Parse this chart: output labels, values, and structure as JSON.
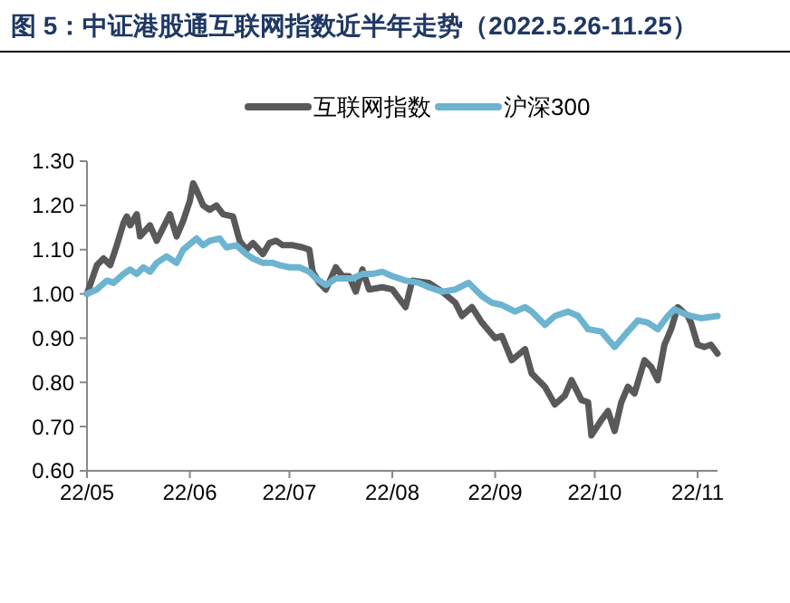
{
  "chart_data": {
    "type": "line",
    "title": "图 5：中证港股通互联网指数近半年走势（2022.5.26-11.25）",
    "legend": "top",
    "grid": false,
    "marker": "none",
    "line_style": "solid",
    "xlim": [
      "2022-05-26",
      "2022-12-02"
    ],
    "xticks": [
      {
        "value": "2022-05-26",
        "label": "22/05"
      },
      {
        "value": "2022-06-26",
        "label": "22/06"
      },
      {
        "value": "2022-07-26",
        "label": "22/07"
      },
      {
        "value": "2022-08-26",
        "label": "22/08"
      },
      {
        "value": "2022-09-26",
        "label": "22/09"
      },
      {
        "value": "2022-10-26",
        "label": "22/10"
      },
      {
        "value": "2022-11-26",
        "label": "22/11"
      }
    ],
    "ylim": [
      0.6,
      1.3
    ],
    "yticks": [
      {
        "value": 0.6,
        "label": "0.60"
      },
      {
        "value": 0.7,
        "label": "0.70"
      },
      {
        "value": 0.8,
        "label": "0.80"
      },
      {
        "value": 0.9,
        "label": "0.90"
      },
      {
        "value": 1.0,
        "label": "1.00"
      },
      {
        "value": 1.1,
        "label": "1.10"
      },
      {
        "value": 1.2,
        "label": "1.20"
      },
      {
        "value": 1.3,
        "label": "1.30"
      }
    ],
    "series": [
      {
        "name": "互联网指数",
        "color": "#595959",
        "x": [
          "2022-05-26",
          "2022-05-29",
          "2022-05-31",
          "2022-06-02",
          "2022-06-04",
          "2022-06-06",
          "2022-06-07",
          "2022-06-08",
          "2022-06-10",
          "2022-06-11",
          "2022-06-14",
          "2022-06-16",
          "2022-06-18",
          "2022-06-20",
          "2022-06-22",
          "2022-06-24",
          "2022-06-26",
          "2022-06-27",
          "2022-06-28",
          "2022-06-30",
          "2022-07-02",
          "2022-07-04",
          "2022-07-06",
          "2022-07-09",
          "2022-07-11",
          "2022-07-13",
          "2022-07-15",
          "2022-07-18",
          "2022-07-20",
          "2022-07-22",
          "2022-07-24",
          "2022-07-27",
          "2022-07-30",
          "2022-08-01",
          "2022-08-02",
          "2022-08-04",
          "2022-08-06",
          "2022-08-09",
          "2022-08-11",
          "2022-08-13",
          "2022-08-15",
          "2022-08-17",
          "2022-08-19",
          "2022-08-23",
          "2022-08-26",
          "2022-08-30",
          "2022-09-01",
          "2022-09-06",
          "2022-09-10",
          "2022-09-14",
          "2022-09-16",
          "2022-09-19",
          "2022-09-22",
          "2022-09-26",
          "2022-09-28",
          "2022-10-01",
          "2022-10-05",
          "2022-10-07",
          "2022-10-11",
          "2022-10-14",
          "2022-10-17",
          "2022-10-19",
          "2022-10-22",
          "2022-10-24",
          "2022-10-25",
          "2022-10-28",
          "2022-10-30",
          "2022-11-01",
          "2022-11-03",
          "2022-11-05",
          "2022-11-07",
          "2022-11-10",
          "2022-11-12",
          "2022-11-14",
          "2022-11-16",
          "2022-11-18",
          "2022-11-20",
          "2022-11-23",
          "2022-11-24",
          "2022-11-26",
          "2022-11-28",
          "2022-11-30",
          "2022-12-02"
        ],
        "values": [
          1.0,
          1.065,
          1.08,
          1.065,
          1.11,
          1.16,
          1.175,
          1.155,
          1.18,
          1.13,
          1.155,
          1.12,
          1.15,
          1.18,
          1.13,
          1.165,
          1.21,
          1.25,
          1.235,
          1.2,
          1.19,
          1.2,
          1.18,
          1.175,
          1.12,
          1.1,
          1.115,
          1.09,
          1.115,
          1.12,
          1.11,
          1.11,
          1.105,
          1.1,
          1.05,
          1.025,
          1.01,
          1.06,
          1.04,
          1.04,
          1.005,
          1.055,
          1.01,
          1.015,
          1.01,
          0.97,
          1.03,
          1.025,
          1.005,
          0.98,
          0.95,
          0.97,
          0.935,
          0.9,
          0.905,
          0.85,
          0.875,
          0.82,
          0.79,
          0.75,
          0.77,
          0.805,
          0.76,
          0.755,
          0.68,
          0.715,
          0.735,
          0.69,
          0.755,
          0.79,
          0.775,
          0.85,
          0.835,
          0.805,
          0.885,
          0.92,
          0.97,
          0.95,
          0.935,
          0.885,
          0.88,
          0.885,
          0.865
        ]
      },
      {
        "name": "沪深300",
        "color": "#6cb4cf",
        "x": [
          "2022-05-26",
          "2022-05-29",
          "2022-06-01",
          "2022-06-03",
          "2022-06-06",
          "2022-06-08",
          "2022-06-10",
          "2022-06-12",
          "2022-06-14",
          "2022-06-16",
          "2022-06-19",
          "2022-06-22",
          "2022-06-24",
          "2022-06-28",
          "2022-06-30",
          "2022-07-02",
          "2022-07-05",
          "2022-07-07",
          "2022-07-10",
          "2022-07-13",
          "2022-07-15",
          "2022-07-18",
          "2022-07-21",
          "2022-07-23",
          "2022-07-26",
          "2022-07-29",
          "2022-08-01",
          "2022-08-03",
          "2022-08-06",
          "2022-08-09",
          "2022-08-11",
          "2022-08-14",
          "2022-08-17",
          "2022-08-20",
          "2022-08-23",
          "2022-08-26",
          "2022-08-30",
          "2022-09-03",
          "2022-09-06",
          "2022-09-10",
          "2022-09-14",
          "2022-09-18",
          "2022-09-22",
          "2022-09-25",
          "2022-09-28",
          "2022-10-02",
          "2022-10-05",
          "2022-10-07",
          "2022-10-11",
          "2022-10-14",
          "2022-10-18",
          "2022-10-21",
          "2022-10-24",
          "2022-10-28",
          "2022-11-01",
          "2022-11-05",
          "2022-11-08",
          "2022-11-11",
          "2022-11-14",
          "2022-11-17",
          "2022-11-19",
          "2022-11-22",
          "2022-11-24",
          "2022-11-27",
          "2022-12-02"
        ],
        "values": [
          1.0,
          1.01,
          1.03,
          1.025,
          1.045,
          1.055,
          1.045,
          1.06,
          1.05,
          1.07,
          1.085,
          1.07,
          1.1,
          1.125,
          1.11,
          1.12,
          1.125,
          1.105,
          1.11,
          1.09,
          1.08,
          1.07,
          1.07,
          1.065,
          1.06,
          1.06,
          1.05,
          1.035,
          1.02,
          1.035,
          1.035,
          1.035,
          1.045,
          1.045,
          1.05,
          1.04,
          1.03,
          1.025,
          1.015,
          1.005,
          1.01,
          1.025,
          0.995,
          0.98,
          0.975,
          0.96,
          0.97,
          0.96,
          0.93,
          0.95,
          0.96,
          0.95,
          0.92,
          0.915,
          0.88,
          0.915,
          0.94,
          0.935,
          0.92,
          0.95,
          0.965,
          0.955,
          0.95,
          0.945,
          0.95
        ]
      }
    ]
  }
}
